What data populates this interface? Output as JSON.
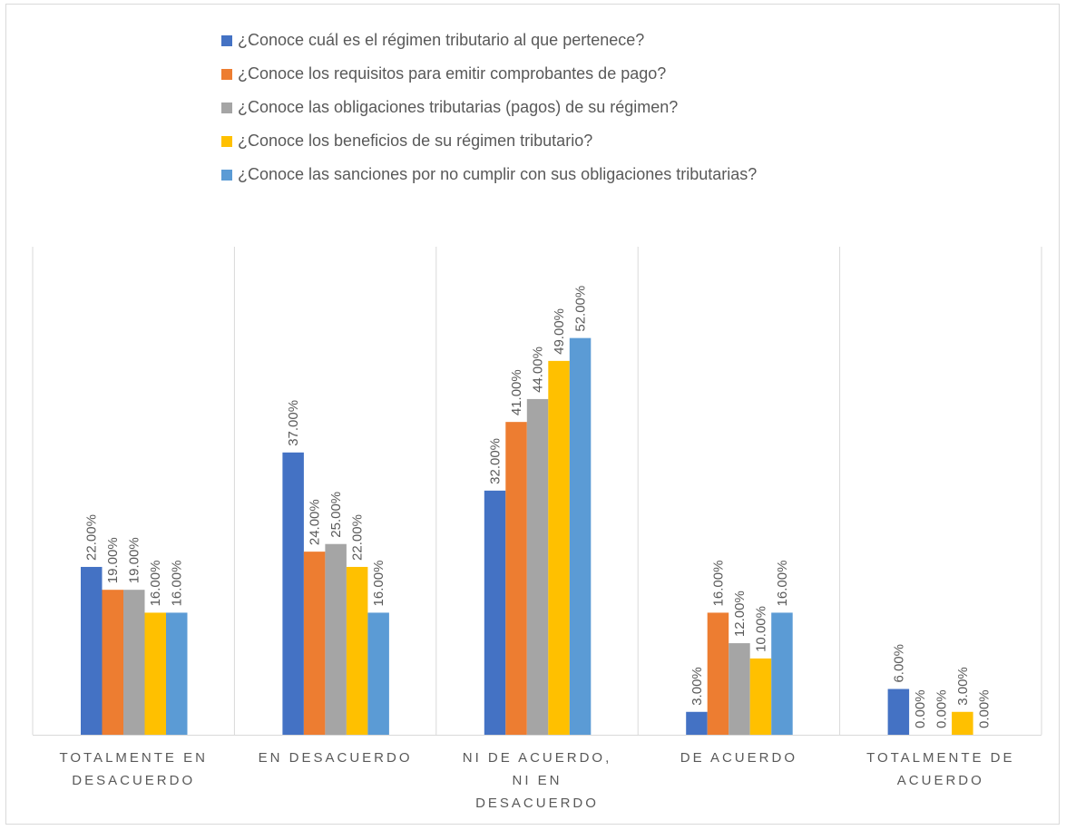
{
  "chart_data": {
    "type": "bar",
    "title": "",
    "xlabel": "",
    "ylabel": "",
    "ylim": [
      0,
      60
    ],
    "grid": "vertical category separators",
    "legend": "top",
    "categories": [
      [
        "TOTALMENTE EN",
        "DESACUERDO"
      ],
      [
        "EN DESACUERDO"
      ],
      [
        "NI DE ACUERDO,",
        "NI EN",
        "DESACUERDO"
      ],
      [
        "DE ACUERDO"
      ],
      [
        "TOTALMENTE DE",
        "ACUERDO"
      ]
    ],
    "series": [
      {
        "name": "¿Conoce cuál es el régimen tributario al que pertenece?",
        "color": "#4472C4",
        "values": [
          22,
          37,
          32,
          3,
          6
        ],
        "labels": [
          "22.00%",
          "37.00%",
          "32.00%",
          "3.00%",
          "6.00%"
        ]
      },
      {
        "name": "¿Conoce los requisitos para emitir comprobantes de pago?",
        "color": "#ED7D31",
        "values": [
          19,
          24,
          41,
          16,
          0
        ],
        "labels": [
          "19.00%",
          "24.00%",
          "41.00%",
          "16.00%",
          "0.00%"
        ]
      },
      {
        "name": "¿Conoce las obligaciones tributarias (pagos) de su régimen?",
        "color": "#A5A5A5",
        "values": [
          19,
          25,
          44,
          12,
          0
        ],
        "labels": [
          "19.00%",
          "25.00%",
          "44.00%",
          "12.00%",
          "0.00%"
        ]
      },
      {
        "name": "¿Conoce los beneficios de su régimen tributario?",
        "color": "#FFC000",
        "values": [
          16,
          22,
          49,
          10,
          3
        ],
        "labels": [
          "16.00%",
          "22.00%",
          "49.00%",
          "10.00%",
          "3.00%"
        ]
      },
      {
        "name": "¿Conoce las sanciones por no cumplir con sus obligaciones tributarias?",
        "color": "#5B9BD5",
        "values": [
          16,
          16,
          52,
          16,
          0
        ],
        "labels": [
          "16.00%",
          "16.00%",
          "52.00%",
          "16.00%",
          "0.00%"
        ]
      }
    ]
  }
}
